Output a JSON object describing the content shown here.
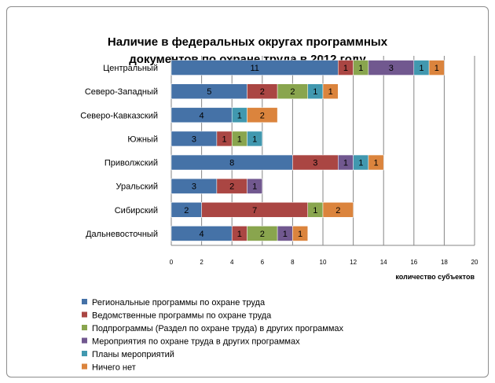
{
  "chart_data": {
    "type": "bar",
    "orientation": "horizontal",
    "stacked": true,
    "title": [
      "Наличие в федеральных округах программных",
      "документов по охране труда в 2012 году"
    ],
    "xlabel": "количество субъектов",
    "ylabel": "",
    "xlim": [
      0,
      20
    ],
    "xticks": [
      0,
      2,
      4,
      6,
      8,
      10,
      12,
      14,
      16,
      18,
      20
    ],
    "grid": true,
    "legend_position": "bottom",
    "categories": [
      "Центральный",
      "Северо-Западный",
      "Северо-Кавказский",
      "Южный",
      "Приволжский",
      "Уральский",
      "Сибирский",
      "Дальневосточный"
    ],
    "series": [
      {
        "name": "Региональные программы по охране труда",
        "color": "#4572a7",
        "values": [
          11,
          5,
          4,
          3,
          8,
          3,
          2,
          4
        ]
      },
      {
        "name": "Ведомственные программы по охране труда",
        "color": "#aa4643",
        "values": [
          1,
          2,
          0,
          1,
          3,
          2,
          7,
          1
        ]
      },
      {
        "name": "Подпрограммы (Раздел по охране труда) в других программах",
        "color": "#89a54e",
        "values": [
          1,
          2,
          0,
          1,
          0,
          0,
          1,
          2
        ]
      },
      {
        "name": "Мероприятия по охране труда в других программах",
        "color": "#71588f",
        "values": [
          3,
          0,
          0,
          0,
          1,
          1,
          0,
          1
        ]
      },
      {
        "name": "Планы мероприятий",
        "color": "#4198af",
        "values": [
          1,
          1,
          1,
          1,
          1,
          0,
          0,
          0
        ]
      },
      {
        "name": "Ничего нет",
        "color": "#db843d",
        "values": [
          1,
          1,
          2,
          0,
          1,
          0,
          2,
          1
        ]
      }
    ]
  }
}
